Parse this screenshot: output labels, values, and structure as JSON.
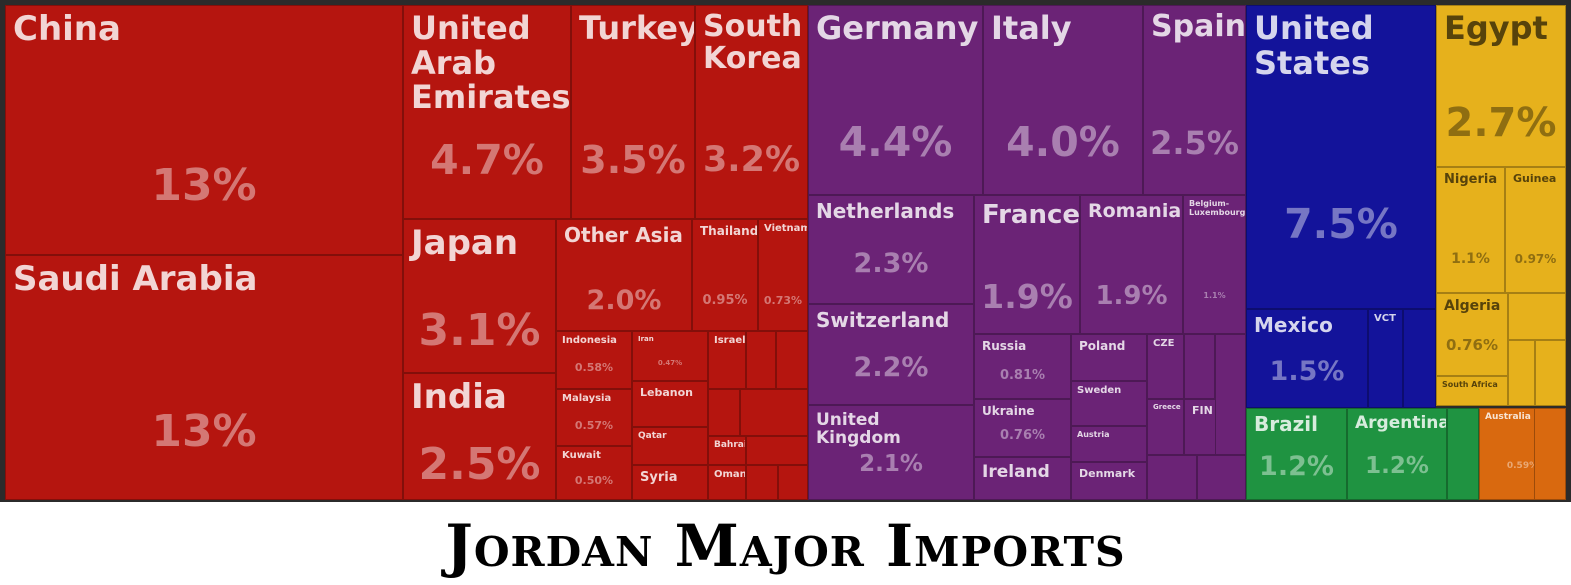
{
  "chart_data": {
    "type": "treemap",
    "title": "Jordan Major Imports",
    "colors": {
      "asia": "#b5150f",
      "europe": "#6b2376",
      "north_america": "#13139a",
      "africa": "#e6b11c",
      "south_america": "#1f9341",
      "oceania": "#d9690f"
    },
    "cells": [
      {
        "group": "asia",
        "label": "China",
        "value": "13%",
        "value_num": 13,
        "fs": 34
      },
      {
        "group": "asia",
        "label": "Saudi Arabia",
        "value": "13%",
        "value_num": 13,
        "fs": 34
      },
      {
        "group": "asia",
        "label": "United Arab Emirates",
        "value": "4.7%",
        "value_num": 4.7,
        "fs": 32
      },
      {
        "group": "asia",
        "label": "Turkey",
        "value": "3.5%",
        "value_num": 3.5,
        "fs": 32
      },
      {
        "group": "asia",
        "label": "South Korea",
        "value": "3.2%",
        "value_num": 3.2,
        "fs": 30
      },
      {
        "group": "asia",
        "label": "Japan",
        "value": "3.1%",
        "value_num": 3.1,
        "fs": 34
      },
      {
        "group": "asia",
        "label": "India",
        "value": "2.5%",
        "value_num": 2.5,
        "fs": 34
      },
      {
        "group": "asia",
        "label": "Other Asia",
        "value": "2.0%",
        "value_num": 2.0,
        "fs": 20
      },
      {
        "group": "asia",
        "label": "Thailand",
        "value": "0.95%",
        "value_num": 0.95,
        "fs": 12
      },
      {
        "group": "asia",
        "label": "Vietnam",
        "value": "0.73%",
        "value_num": 0.73,
        "fs": 10
      },
      {
        "group": "asia",
        "label": "Indonesia",
        "value": "0.58%",
        "value_num": 0.58,
        "fs": 10
      },
      {
        "group": "asia",
        "label": "Iran",
        "value": "0.47%",
        "value_num": 0.47,
        "fs": 7
      },
      {
        "group": "asia",
        "label": "Israel",
        "value": "",
        "fs": 10
      },
      {
        "group": "asia",
        "label": "Malaysia",
        "value": "0.57%",
        "value_num": 0.57,
        "fs": 10
      },
      {
        "group": "asia",
        "label": "Lebanon",
        "value": "",
        "fs": 11
      },
      {
        "group": "asia",
        "label": "Qatar",
        "value": "",
        "fs": 9
      },
      {
        "group": "asia",
        "label": "Bahrain",
        "value": "",
        "fs": 9
      },
      {
        "group": "asia",
        "label": "Kuwait",
        "value": "0.50%",
        "value_num": 0.5,
        "fs": 10
      },
      {
        "group": "asia",
        "label": "Syria",
        "value": "",
        "fs": 13
      },
      {
        "group": "asia",
        "label": "Oman",
        "value": "",
        "fs": 10
      },
      {
        "group": "asia",
        "label": "",
        "value": ""
      },
      {
        "group": "asia",
        "label": "",
        "value": ""
      },
      {
        "group": "asia",
        "label": "",
        "value": ""
      },
      {
        "group": "asia",
        "label": "",
        "value": ""
      },
      {
        "group": "asia",
        "label": "",
        "value": ""
      },
      {
        "group": "asia",
        "label": "",
        "value": ""
      },
      {
        "group": "asia",
        "label": "",
        "value": ""
      },
      {
        "group": "europe",
        "label": "Germany",
        "value": "4.4%",
        "value_num": 4.4,
        "fs": 32
      },
      {
        "group": "europe",
        "label": "Italy",
        "value": "4.0%",
        "value_num": 4.0,
        "fs": 32
      },
      {
        "group": "europe",
        "label": "Spain",
        "value": "2.5%",
        "value_num": 2.5,
        "fs": 30
      },
      {
        "group": "europe",
        "label": "Netherlands",
        "value": "2.3%",
        "value_num": 2.3,
        "fs": 20
      },
      {
        "group": "europe",
        "label": "France",
        "value": "1.9%",
        "value_num": 1.9,
        "fs": 26
      },
      {
        "group": "europe",
        "label": "Romania",
        "value": "1.9%",
        "value_num": 1.9,
        "fs": 19
      },
      {
        "group": "europe",
        "label": "Belgium-Luxembourg",
        "value": "1.1%",
        "value_num": 1.1,
        "fs": 8
      },
      {
        "group": "europe",
        "label": "Switzerland",
        "value": "2.2%",
        "value_num": 2.2,
        "fs": 20
      },
      {
        "group": "europe",
        "label": "United Kingdom",
        "value": "2.1%",
        "value_num": 2.1,
        "fs": 17
      },
      {
        "group": "europe",
        "label": "Russia",
        "value": "0.81%",
        "value_num": 0.81,
        "fs": 12
      },
      {
        "group": "europe",
        "label": "Poland",
        "value": "",
        "fs": 12
      },
      {
        "group": "europe",
        "label": "CZE",
        "value": "",
        "fs": 10
      },
      {
        "group": "europe",
        "label": "Sweden",
        "value": "",
        "fs": 10
      },
      {
        "group": "europe",
        "label": "Ukraine",
        "value": "0.76%",
        "value_num": 0.76,
        "fs": 12
      },
      {
        "group": "europe",
        "label": "Greece",
        "value": "",
        "fs": 7
      },
      {
        "group": "europe",
        "label": "FIN",
        "value": "",
        "fs": 11
      },
      {
        "group": "europe",
        "label": "Austria",
        "value": "",
        "fs": 8
      },
      {
        "group": "europe",
        "label": "Ireland",
        "value": "",
        "fs": 17
      },
      {
        "group": "europe",
        "label": "Denmark",
        "value": "",
        "fs": 11
      },
      {
        "group": "europe",
        "label": "",
        "value": ""
      },
      {
        "group": "europe",
        "label": "",
        "value": ""
      },
      {
        "group": "europe",
        "label": "",
        "value": ""
      },
      {
        "group": "europe",
        "label": "",
        "value": ""
      },
      {
        "group": "north_america",
        "label": "United States",
        "value": "7.5%",
        "value_num": 7.5,
        "fs": 32
      },
      {
        "group": "north_america",
        "label": "Mexico",
        "value": "1.5%",
        "value_num": 1.5,
        "fs": 20
      },
      {
        "group": "north_america",
        "label": "VCT",
        "value": "",
        "fs": 10
      },
      {
        "group": "north_america",
        "label": "",
        "value": ""
      },
      {
        "group": "africa",
        "label": "Egypt",
        "value": "2.7%",
        "value_num": 2.7,
        "fs": 32
      },
      {
        "group": "africa",
        "label": "Nigeria",
        "value": "1.1%",
        "value_num": 1.1,
        "fs": 13
      },
      {
        "group": "africa",
        "label": "Guinea",
        "value": "0.97%",
        "value_num": 0.97,
        "fs": 11
      },
      {
        "group": "africa",
        "label": "Algeria",
        "value": "0.76%",
        "value_num": 0.76,
        "fs": 14
      },
      {
        "group": "africa",
        "label": "South Africa",
        "value": "",
        "fs": 8
      },
      {
        "group": "africa",
        "label": "",
        "value": ""
      },
      {
        "group": "africa",
        "label": "",
        "value": ""
      },
      {
        "group": "africa",
        "label": "",
        "value": ""
      },
      {
        "group": "south_america",
        "label": "Brazil",
        "value": "1.2%",
        "value_num": 1.2,
        "fs": 20
      },
      {
        "group": "south_america",
        "label": "Argentina",
        "value": "1.2%",
        "value_num": 1.2,
        "fs": 17
      },
      {
        "group": "south_america",
        "label": "",
        "value": ""
      },
      {
        "group": "oceania",
        "label": "Australia",
        "value": "0.59%",
        "value_num": 0.59,
        "fs": 9
      },
      {
        "group": "oceania",
        "label": "",
        "value": ""
      }
    ]
  }
}
